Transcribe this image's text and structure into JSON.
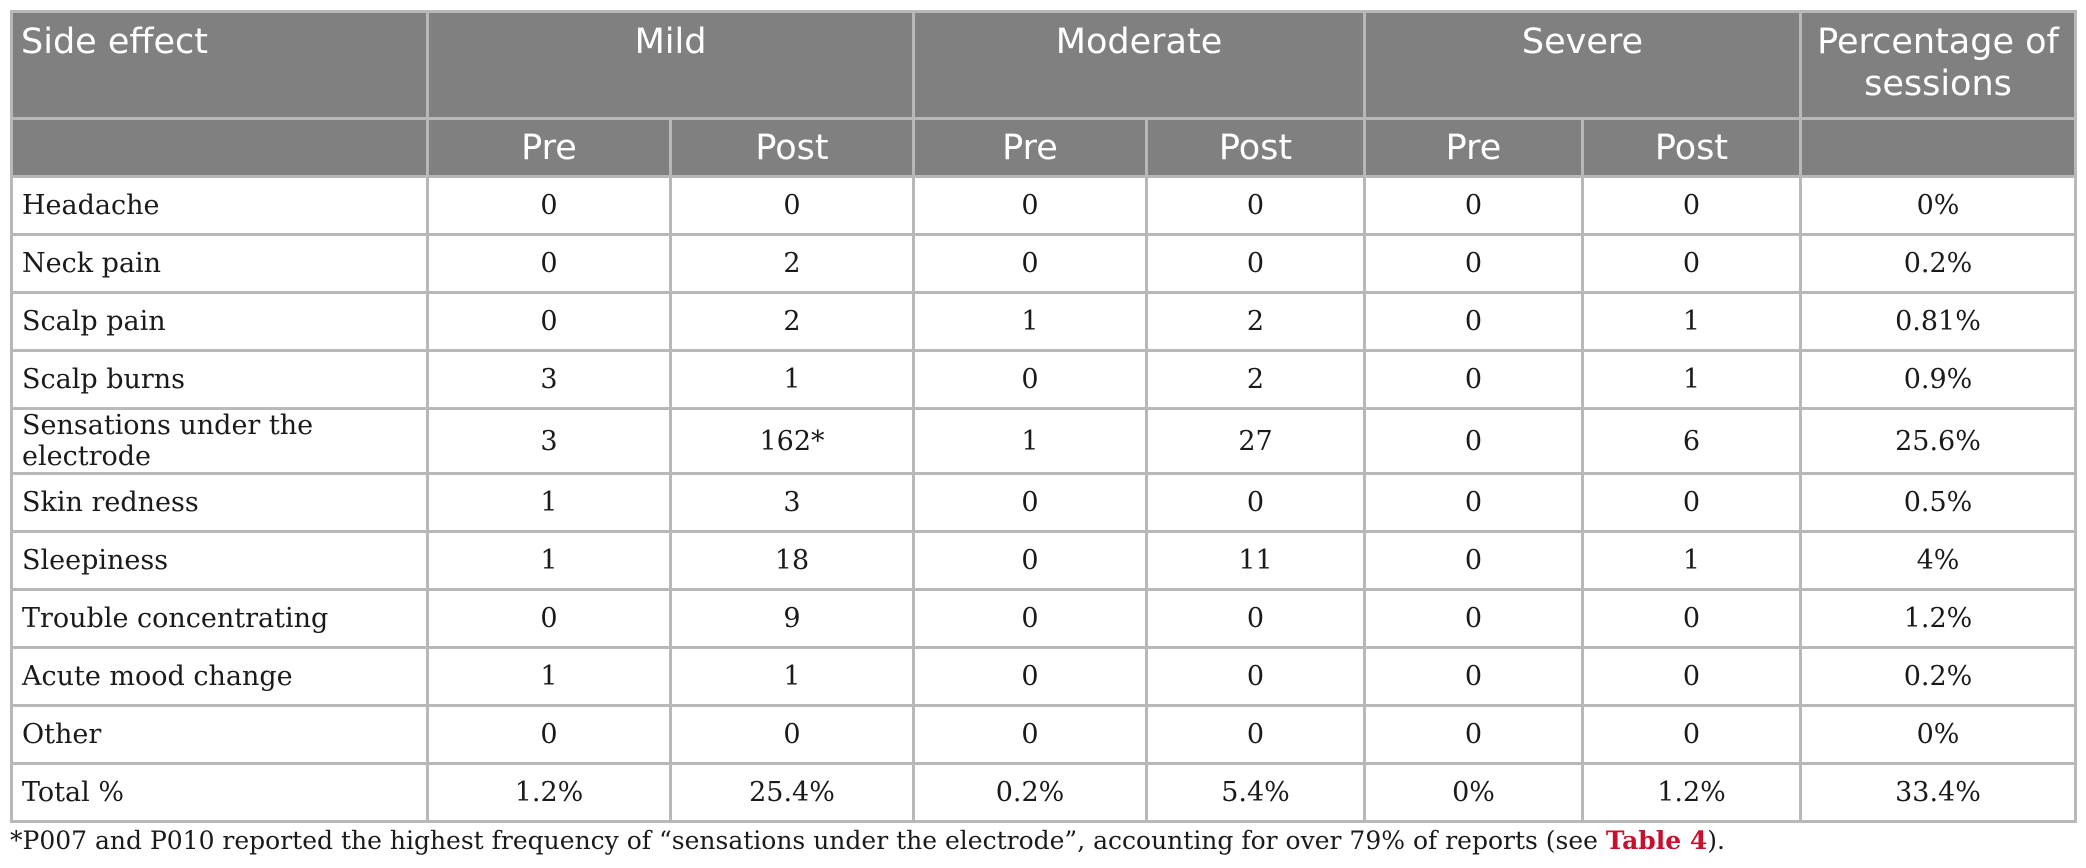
{
  "headers": {
    "side_effect": "Side effect",
    "mild": "Mild",
    "moderate": "Moderate",
    "severe": "Severe",
    "percentage": "Percentage of sessions",
    "pre": "Pre",
    "post": "Post"
  },
  "rows": [
    {
      "label": "Headache",
      "cells": [
        "0",
        "0",
        "0",
        "0",
        "0",
        "0",
        "0%"
      ]
    },
    {
      "label": "Neck pain",
      "cells": [
        "0",
        "2",
        "0",
        "0",
        "0",
        "0",
        "0.2%"
      ]
    },
    {
      "label": "Scalp pain",
      "cells": [
        "0",
        "2",
        "1",
        "2",
        "0",
        "1",
        "0.81%"
      ]
    },
    {
      "label": "Scalp burns",
      "cells": [
        "3",
        "1",
        "0",
        "2",
        "0",
        "1",
        "0.9%"
      ]
    },
    {
      "label": "Sensations under the electrode",
      "cells": [
        "3",
        "162*",
        "1",
        "27",
        "0",
        "6",
        "25.6%"
      ]
    },
    {
      "label": "Skin redness",
      "cells": [
        "1",
        "3",
        "0",
        "0",
        "0",
        "0",
        "0.5%"
      ]
    },
    {
      "label": "Sleepiness",
      "cells": [
        "1",
        "18",
        "0",
        "11",
        "0",
        "1",
        "4%"
      ]
    },
    {
      "label": "Trouble concentrating",
      "cells": [
        "0",
        "9",
        "0",
        "0",
        "0",
        "0",
        "1.2%"
      ]
    },
    {
      "label": "Acute mood change",
      "cells": [
        "1",
        "1",
        "0",
        "0",
        "0",
        "0",
        "0.2%"
      ]
    },
    {
      "label": "Other",
      "cells": [
        "0",
        "0",
        "0",
        "0",
        "0",
        "0",
        "0%"
      ]
    },
    {
      "label": "Total %",
      "cells": [
        "1.2%",
        "25.4%",
        "0.2%",
        "5.4%",
        "0%",
        "1.2%",
        "33.4%"
      ]
    }
  ],
  "footnote": {
    "before": "*P007 and P010 reported the highest frequency of “sensations under the electrode”, accounting for over 79% of reports (see ",
    "ref": "Table 4",
    "after": ")."
  }
}
